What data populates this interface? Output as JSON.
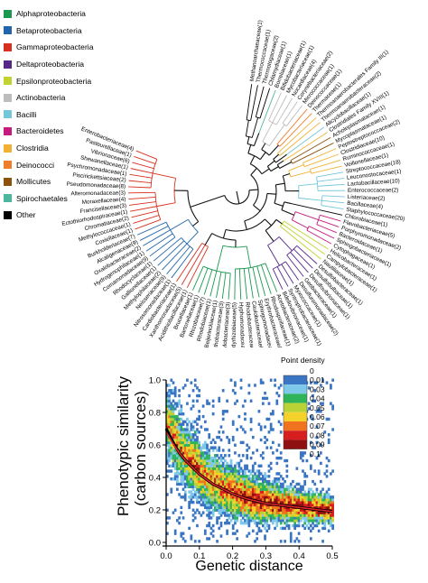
{
  "legend": [
    {
      "label": "Alphaproteobacteria",
      "color": "#1a9850"
    },
    {
      "label": "Betaproteobacteria",
      "color": "#2166ac"
    },
    {
      "label": "Gammaproteobacteria",
      "color": "#d7301f"
    },
    {
      "label": "Deltaproteobacteria",
      "color": "#542788"
    },
    {
      "label": "Epsilonproteobacteria",
      "color": "#c2d32f"
    },
    {
      "label": "Actinobacteria",
      "color": "#bdbdbd"
    },
    {
      "label": "Bacilli",
      "color": "#74c6d9"
    },
    {
      "label": "Bacteroidetes",
      "color": "#c51b7d"
    },
    {
      "label": "Clostridia",
      "color": "#f2b134"
    },
    {
      "label": "Deinococci",
      "color": "#f07d2a"
    },
    {
      "label": "Mollicutes",
      "color": "#8c510a"
    },
    {
      "label": "Spirochaetales",
      "color": "#4db6a0"
    },
    {
      "label": "Other",
      "color": "#000000"
    }
  ],
  "tree_leaves": [
    {
      "label": "Methanoarchaeaceae(1)",
      "class": "Other"
    },
    {
      "label": "Thermococcaceae(1)",
      "class": "Other"
    },
    {
      "label": "Thermotogaceae(2)",
      "class": "Other"
    },
    {
      "label": "Chlamydiaceae(1)",
      "class": "Other"
    },
    {
      "label": "Borreliaceae(1)",
      "class": "Spirochaetales"
    },
    {
      "label": "Bifidobacteriaceae(1)",
      "class": "Actinobacteria"
    },
    {
      "label": "Mycobacteriaceae(1)",
      "class": "Actinobacteria"
    },
    {
      "label": "Nocardiaceae(4)",
      "class": "Actinobacteria"
    },
    {
      "label": "Corynebacteriaceae(2)",
      "class": "Actinobacteria"
    },
    {
      "label": "Micrococcaceae(1)",
      "class": "Actinobacteria"
    },
    {
      "label": "Deinococcaceae(1)",
      "class": "Deinococci"
    },
    {
      "label": "Thermaceae(1)",
      "class": "Deinococci"
    },
    {
      "label": "Thermoanaerobacterales Family III(1)",
      "class": "Clostridia"
    },
    {
      "label": "Thermoanaerobacteraceae(2)",
      "class": "Clostridia"
    },
    {
      "label": "Alicyclobacillaceae(1)",
      "class": "Bacilli"
    },
    {
      "label": "Clostridiales Family XVIII(1)",
      "class": "Clostridia"
    },
    {
      "label": "Acholeplasmataceae(1)",
      "class": "Mollicutes"
    },
    {
      "label": "Mycoplasmataceae(1)",
      "class": "Mollicutes"
    },
    {
      "label": "Peptostreptococcaceae(2)",
      "class": "Clostridia"
    },
    {
      "label": "Clostridiaceae(10)",
      "class": "Clostridia"
    },
    {
      "label": "Ruminococcaceae(1)",
      "class": "Clostridia"
    },
    {
      "label": "Veillonellaceae(1)",
      "class": "Clostridia"
    },
    {
      "label": "Streptococcaceae(18)",
      "class": "Bacilli"
    },
    {
      "label": "Leuconostocaceae(1)",
      "class": "Bacilli"
    },
    {
      "label": "Lactobacillaceae(10)",
      "class": "Bacilli"
    },
    {
      "label": "Enterococcaceae(2)",
      "class": "Bacilli"
    },
    {
      "label": "Listeriaceae(2)",
      "class": "Bacilli"
    },
    {
      "label": "Bacillaceae(4)",
      "class": "Bacilli"
    },
    {
      "label": "Staphylococcaceae(20)",
      "class": "Bacilli"
    },
    {
      "label": "Chlorobiaceae(1)",
      "class": "Other"
    },
    {
      "label": "Flavobacteriaceae(5)",
      "class": "Bacteroidetes"
    },
    {
      "label": "Porphyromonadaceae(2)",
      "class": "Bacteroidetes"
    },
    {
      "label": "Bacteroidaceae(1)",
      "class": "Bacteroidetes"
    },
    {
      "label": "Sphingobacteriaceae(1)",
      "class": "Bacteroidetes"
    },
    {
      "label": "Cytophagaceae(1)",
      "class": "Bacteroidetes"
    },
    {
      "label": "Helicobacteraceae(1)",
      "class": "Epsilonproteobacteria"
    },
    {
      "label": "Campylobacteraceae(1)",
      "class": "Epsilonproteobacteria"
    },
    {
      "label": "Nautiliaceae(1)",
      "class": "Epsilonproteobacteria"
    },
    {
      "label": "Desulfobacteraceae(1)",
      "class": "Deltaproteobacteria"
    },
    {
      "label": "Desulfobulbaceae(1)",
      "class": "Deltaproteobacteria"
    },
    {
      "label": "Desulfovibrionaceae(1)",
      "class": "Deltaproteobacteria"
    },
    {
      "label": "Geobacteraceae(1)",
      "class": "Deltaproteobacteria"
    },
    {
      "label": "Desulfuromonadaceae(2)",
      "class": "Deltaproteobacteria"
    },
    {
      "label": "Myxococcaceae(1)",
      "class": "Deltaproteobacteria"
    },
    {
      "label": "Syntrophobacteraceae(1)",
      "class": "Deltaproteobacteria"
    },
    {
      "label": "Bdellovibrionaceae(1)",
      "class": "Deltaproteobacteria"
    },
    {
      "label": "Acetobacteraceae(2)",
      "class": "Alphaproteobacteria"
    },
    {
      "label": "Rhodospirillaceae(1)",
      "class": "Alphaproteobacteria"
    },
    {
      "label": "Erythrobacteraceae(1)",
      "class": "Alphaproteobacteria"
    },
    {
      "label": "Sphingomonadaceae(3)",
      "class": "Alphaproteobacteria"
    },
    {
      "label": "Caulobacteraceae(2)",
      "class": "Alphaproteobacteria"
    },
    {
      "label": "Rhodobacteraceae(5)",
      "class": "Alphaproteobacteria"
    },
    {
      "label": "Hyphomonadaceae(1)",
      "class": "Alphaproteobacteria"
    },
    {
      "label": "Bradyrhizobiaceae(5)",
      "class": "Alphaproteobacteria"
    },
    {
      "label": "Methylobacteriaceae(3)",
      "class": "Alphaproteobacteria"
    },
    {
      "label": "Xanthobacteraceae(3)",
      "class": "Alphaproteobacteria"
    },
    {
      "label": "Beijerinckiaceae(1)",
      "class": "Alphaproteobacteria"
    },
    {
      "label": "Rhodobiaceae(1)",
      "class": "Alphaproteobacteria"
    },
    {
      "label": "Rhizobiaceae(7)",
      "class": "Alphaproteobacteria"
    },
    {
      "label": "Bartonellaceae(1)",
      "class": "Alphaproteobacteria"
    },
    {
      "label": "Brucellaceae(1)",
      "class": "Alphaproteobacteria"
    },
    {
      "label": "Acidithiobacillaceae(1)",
      "class": "Gammaproteobacteria"
    },
    {
      "label": "Xanthomonadaceae(5)",
      "class": "Gammaproteobacteria"
    },
    {
      "label": "Cardiobacteriaceae(1)",
      "class": "Gammaproteobacteria"
    },
    {
      "label": "Nitrosomonadaceae(1)",
      "class": "Betaproteobacteria"
    },
    {
      "label": "Neisseriaceae(9)",
      "class": "Betaproteobacteria"
    },
    {
      "label": "Methylophilaceae(2)",
      "class": "Betaproteobacteria"
    },
    {
      "label": "Gallionellaceae(1)",
      "class": "Betaproteobacteria"
    },
    {
      "label": "Rhodocyclaceae(1)",
      "class": "Betaproteobacteria"
    },
    {
      "label": "Comamonadaceae(9)",
      "class": "Betaproteobacteria"
    },
    {
      "label": "Hydrogenophilaceae(1)",
      "class": "Betaproteobacteria"
    },
    {
      "label": "Oxalobacteraceae(2)",
      "class": "Betaproteobacteria"
    },
    {
      "label": "Alcaligenaceae(9)",
      "class": "Betaproteobacteria"
    },
    {
      "label": "Burkholderiaceae(7)",
      "class": "Betaproteobacteria"
    },
    {
      "label": "Coxiellaceae(1)",
      "class": "Gammaproteobacteria"
    },
    {
      "label": "Methylococcaceae(1)",
      "class": "Gammaproteobacteria"
    },
    {
      "label": "Chromatiaceae(2)",
      "class": "Gammaproteobacteria"
    },
    {
      "label": "Ectothiorhodospiraceae(1)",
      "class": "Gammaproteobacteria"
    },
    {
      "label": "Francisellaceae(3)",
      "class": "Gammaproteobacteria"
    },
    {
      "label": "Moraxellaceae(4)",
      "class": "Gammaproteobacteria"
    },
    {
      "label": "Alteromonadaceae(3)",
      "class": "Gammaproteobacteria"
    },
    {
      "label": "Pseudomonadaceae(8)",
      "class": "Gammaproteobacteria"
    },
    {
      "label": "Piscirickettsiaceae(2)",
      "class": "Gammaproteobacteria"
    },
    {
      "label": "Psychromonadaceae(1)",
      "class": "Gammaproteobacteria"
    },
    {
      "label": "Shewanellaceae(1)",
      "class": "Gammaproteobacteria"
    },
    {
      "label": "Vibrionaceae(6)",
      "class": "Gammaproteobacteria"
    },
    {
      "label": "Pasteurellaceae(1)",
      "class": "Gammaproteobacteria"
    },
    {
      "label": "Enterobacteriaceae(4)",
      "class": "Gammaproteobacteria"
    }
  ],
  "chart_data": {
    "type": "heatmap",
    "xlabel": "Genetic distance",
    "ylabel": "Phenotypic similarity (carbon sources)",
    "xlim": [
      0.0,
      0.5
    ],
    "ylim": [
      0.0,
      1.0
    ],
    "xticks": [
      "0.0",
      "0.1",
      "0.2",
      "0.3",
      "0.4",
      "0.5"
    ],
    "yticks": [
      "0.0",
      "0.2",
      "0.4",
      "0.6",
      "0.8",
      "1.0"
    ],
    "colorbar": {
      "title": "Point density",
      "levels": [
        {
          "value": "0",
          "color": "#ffffff"
        },
        {
          "value": "0.01",
          "color": "#3a75c4"
        },
        {
          "value": "0.03",
          "color": "#7ec8ea"
        },
        {
          "value": "0.04",
          "color": "#2fb45a"
        },
        {
          "value": "0.05",
          "color": "#b9d336"
        },
        {
          "value": "0.06",
          "color": "#f4d12b"
        },
        {
          "value": "0.07",
          "color": "#f0741f"
        },
        {
          "value": "0.08",
          "color": "#d61e1e"
        },
        {
          "value": "0.09",
          "color": "#8e1010"
        },
        {
          "value": "0.1",
          "color": "#8e1010"
        }
      ]
    },
    "trend_fit": {
      "x": [
        0.0,
        0.02,
        0.04,
        0.06,
        0.08,
        0.1,
        0.12,
        0.14,
        0.16,
        0.18,
        0.2,
        0.22,
        0.24,
        0.26,
        0.28,
        0.3,
        0.32,
        0.34,
        0.36,
        0.38,
        0.4,
        0.42,
        0.44,
        0.46,
        0.48,
        0.5
      ],
      "black_y": [
        0.7,
        0.62,
        0.55,
        0.5,
        0.46,
        0.42,
        0.39,
        0.36,
        0.34,
        0.32,
        0.3,
        0.285,
        0.27,
        0.26,
        0.25,
        0.24,
        0.235,
        0.23,
        0.225,
        0.22,
        0.215,
        0.21,
        0.205,
        0.2,
        0.195,
        0.19
      ],
      "red_y": [
        0.68,
        0.61,
        0.55,
        0.5,
        0.46,
        0.42,
        0.39,
        0.36,
        0.34,
        0.32,
        0.3,
        0.285,
        0.27,
        0.26,
        0.25,
        0.24,
        0.235,
        0.23,
        0.225,
        0.22,
        0.215,
        0.21,
        0.205,
        0.2,
        0.195,
        0.19
      ]
    }
  }
}
